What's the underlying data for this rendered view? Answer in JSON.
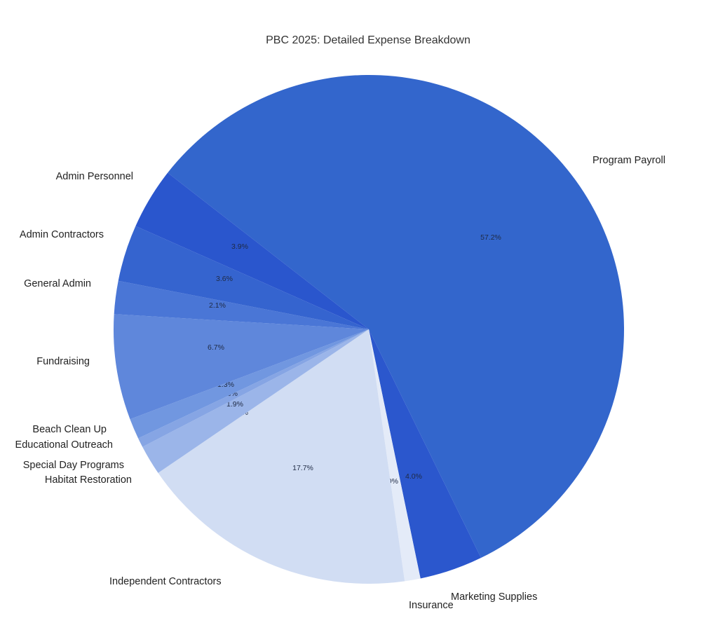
{
  "chart_data": {
    "type": "pie",
    "title": "PBC 2025: Detailed Expense Breakdown",
    "slices": [
      {
        "label": "Program Payroll",
        "value": 57.2,
        "pct_label": "57.2%",
        "color": "#3366cc"
      },
      {
        "label": "Marketing Supplies",
        "value": 4.0,
        "pct_label": "4.0%",
        "color": "#2b57cd"
      },
      {
        "label": "Insurance",
        "value": 1.0,
        "pct_label": "1.0%",
        "color": "#e4ebf8"
      },
      {
        "label": "Independent Contractors",
        "value": 17.7,
        "pct_label": "17.7%",
        "color": "#d1ddf3"
      },
      {
        "label": "Habitat Restoration",
        "value": 0.0,
        "pct_label": "0.0%",
        "color": "#b3c7ee"
      },
      {
        "label": "Special Day Programs",
        "value": 1.9,
        "pct_label": "1.9%",
        "color": "#9bb5e9"
      },
      {
        "label": "Educational Outreach",
        "value": 0.6,
        "pct_label": "0.6%",
        "color": "#86a5e4"
      },
      {
        "label": "Beach Clean Up",
        "value": 1.3,
        "pct_label": "1.3%",
        "color": "#7197e0"
      },
      {
        "label": "Fundraising",
        "value": 6.7,
        "pct_label": "6.7%",
        "color": "#5f87db"
      },
      {
        "label": "General Admin",
        "value": 2.1,
        "pct_label": "2.1%",
        "color": "#4a76d6"
      },
      {
        "label": "Admin Contractors",
        "value": 3.6,
        "pct_label": "3.6%",
        "color": "#3564cf"
      },
      {
        "label": "Admin Personnel",
        "value": 3.9,
        "pct_label": "3.9%",
        "color": "#2a56cd"
      }
    ],
    "legend": "labels-outside"
  }
}
